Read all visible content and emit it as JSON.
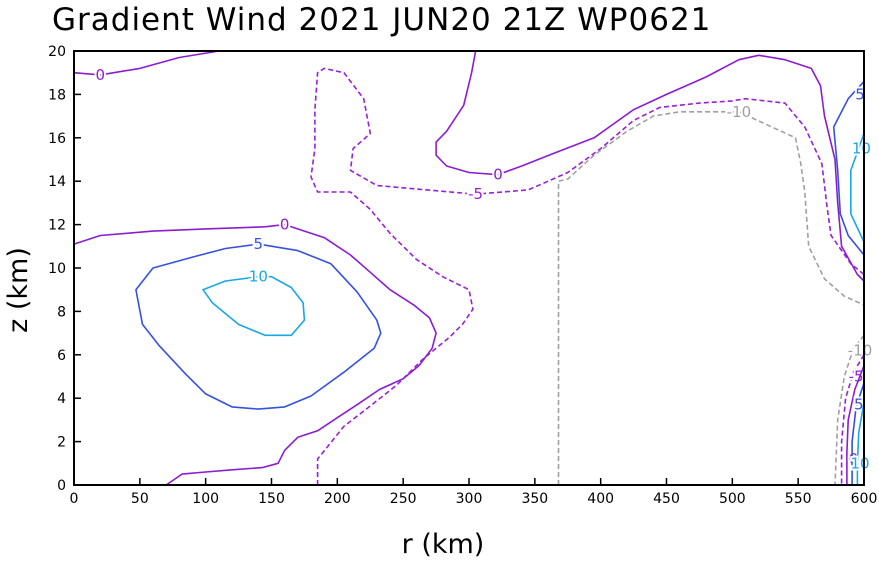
{
  "chart_data": {
    "type": "contour",
    "title": "Gradient Wind 2021 JUN20 21Z   WP0621",
    "xlabel": "r (km)",
    "ylabel": "z (km)",
    "xlim": [
      0,
      600
    ],
    "ylim": [
      0,
      20
    ],
    "xticks": [
      0,
      50,
      100,
      150,
      200,
      250,
      300,
      350,
      400,
      450,
      500,
      550,
      600
    ],
    "yticks": [
      0,
      2,
      4,
      6,
      8,
      10,
      12,
      14,
      16,
      18,
      20
    ],
    "grid": false,
    "levels": [
      {
        "value": -10,
        "label": "-10",
        "color": "#a0a0a0",
        "dashed": true
      },
      {
        "value": -5,
        "label": "-5",
        "color": "#9b1fd6",
        "dashed": true
      },
      {
        "value": 0,
        "label": "0",
        "color": "#8c1ccf",
        "dashed": false
      },
      {
        "value": 5,
        "label": "5",
        "color": "#3551e0",
        "dashed": false
      },
      {
        "value": 10,
        "label": "10",
        "color": "#19a7e8",
        "dashed": false
      }
    ],
    "contours": [
      {
        "level": 0,
        "label_at": [
          20,
          18.9
        ],
        "points": [
          [
            0,
            19.0
          ],
          [
            20,
            18.9
          ],
          [
            50,
            19.2
          ],
          [
            80,
            19.7
          ],
          [
            110,
            20.0
          ]
        ]
      },
      {
        "level": 0,
        "label_at": [
          322,
          14.3
        ],
        "points": [
          [
            305,
            20.0
          ],
          [
            302,
            19.0
          ],
          [
            296,
            17.5
          ],
          [
            283,
            16.3
          ],
          [
            275,
            15.8
          ],
          [
            275,
            15.2
          ],
          [
            283,
            14.7
          ],
          [
            300,
            14.4
          ],
          [
            322,
            14.3
          ],
          [
            340,
            14.7
          ],
          [
            365,
            15.3
          ],
          [
            395,
            16.0
          ],
          [
            425,
            17.3
          ],
          [
            450,
            18.0
          ],
          [
            480,
            18.8
          ],
          [
            505,
            19.6
          ],
          [
            520,
            19.8
          ],
          [
            540,
            19.6
          ],
          [
            560,
            19.2
          ],
          [
            567,
            18.4
          ],
          [
            570,
            17.0
          ],
          [
            578,
            15.0
          ],
          [
            580,
            13.0
          ],
          [
            583,
            11.0
          ],
          [
            595,
            9.7
          ],
          [
            600,
            9.4
          ]
        ]
      },
      {
        "level": 0,
        "label_at": [
          160,
          12.0
        ],
        "points": [
          [
            0,
            11.1
          ],
          [
            20,
            11.5
          ],
          [
            60,
            11.7
          ],
          [
            100,
            11.8
          ],
          [
            145,
            11.9
          ],
          [
            160,
            12.0
          ],
          [
            190,
            11.4
          ],
          [
            210,
            10.6
          ],
          [
            225,
            9.8
          ],
          [
            240,
            9.0
          ],
          [
            258,
            8.3
          ],
          [
            270,
            7.7
          ],
          [
            275,
            7.0
          ],
          [
            272,
            6.3
          ],
          [
            262,
            5.5
          ],
          [
            250,
            4.9
          ],
          [
            232,
            4.4
          ],
          [
            215,
            3.7
          ],
          [
            200,
            3.1
          ],
          [
            185,
            2.5
          ],
          [
            170,
            2.2
          ],
          [
            160,
            1.6
          ],
          [
            155,
            1.0
          ],
          [
            143,
            0.8
          ],
          [
            120,
            0.7
          ],
          [
            100,
            0.6
          ],
          [
            82,
            0.5
          ],
          [
            70,
            0.0
          ]
        ]
      },
      {
        "level": 5,
        "label_at": [
          140,
          11.1
        ],
        "points": [
          [
            140,
            11.1
          ],
          [
            115,
            10.9
          ],
          [
            90,
            10.5
          ],
          [
            60,
            10.0
          ],
          [
            47,
            9.0
          ],
          [
            52,
            7.4
          ],
          [
            65,
            6.4
          ],
          [
            85,
            5.1
          ],
          [
            100,
            4.2
          ],
          [
            120,
            3.6
          ],
          [
            140,
            3.5
          ],
          [
            160,
            3.6
          ],
          [
            180,
            4.1
          ],
          [
            205,
            5.2
          ],
          [
            228,
            6.3
          ],
          [
            233,
            7.0
          ],
          [
            230,
            7.6
          ],
          [
            215,
            8.9
          ],
          [
            195,
            10.2
          ],
          [
            170,
            10.8
          ],
          [
            140,
            11.1
          ]
        ]
      },
      {
        "level": 10,
        "label_at": [
          140,
          9.6
        ],
        "points": [
          [
            140,
            9.6
          ],
          [
            115,
            9.4
          ],
          [
            98,
            9.0
          ],
          [
            105,
            8.4
          ],
          [
            125,
            7.4
          ],
          [
            145,
            6.9
          ],
          [
            165,
            6.9
          ],
          [
            175,
            7.6
          ],
          [
            174,
            8.4
          ],
          [
            165,
            9.1
          ],
          [
            150,
            9.6
          ],
          [
            140,
            9.6
          ]
        ]
      },
      {
        "level": -5,
        "label_at": [
          305,
          13.4
        ],
        "points": [
          [
            185,
            0.0
          ],
          [
            185,
            1.2
          ],
          [
            205,
            2.7
          ],
          [
            222,
            3.5
          ],
          [
            245,
            4.6
          ],
          [
            265,
            5.8
          ],
          [
            285,
            6.8
          ],
          [
            295,
            7.4
          ],
          [
            303,
            8.1
          ],
          [
            300,
            9.0
          ],
          [
            280,
            9.6
          ],
          [
            260,
            10.4
          ],
          [
            240,
            11.6
          ],
          [
            225,
            12.7
          ],
          [
            210,
            13.5
          ],
          [
            185,
            13.5
          ],
          [
            180,
            14.2
          ],
          [
            183,
            15.5
          ],
          [
            183,
            17.3
          ],
          [
            185,
            19.0
          ],
          [
            190,
            19.2
          ],
          [
            205,
            19.0
          ],
          [
            220,
            17.8
          ],
          [
            225,
            16.2
          ],
          [
            212,
            15.5
          ],
          [
            210,
            14.5
          ],
          [
            230,
            13.8
          ],
          [
            305,
            13.4
          ],
          [
            345,
            13.6
          ],
          [
            375,
            14.4
          ],
          [
            400,
            15.5
          ],
          [
            425,
            16.8
          ],
          [
            445,
            17.4
          ],
          [
            475,
            17.6
          ],
          [
            500,
            17.7
          ],
          [
            510,
            17.8
          ],
          [
            540,
            17.6
          ],
          [
            555,
            16.5
          ],
          [
            568,
            14.8
          ],
          [
            572,
            12.8
          ],
          [
            575,
            11.5
          ],
          [
            590,
            10.2
          ],
          [
            600,
            9.7
          ]
        ]
      },
      {
        "level": -10,
        "label_at": [
          505,
          17.2
        ],
        "points": [
          [
            368,
            0.0
          ],
          [
            368,
            14.0
          ],
          [
            375,
            14.1
          ],
          [
            395,
            15.2
          ],
          [
            420,
            16.3
          ],
          [
            440,
            17.0
          ],
          [
            460,
            17.2
          ],
          [
            480,
            17.2
          ],
          [
            505,
            17.2
          ],
          [
            530,
            16.5
          ],
          [
            548,
            16.0
          ],
          [
            552,
            14.8
          ],
          [
            555,
            13.5
          ],
          [
            558,
            11.0
          ],
          [
            570,
            9.5
          ],
          [
            585,
            8.7
          ],
          [
            600,
            8.3
          ]
        ]
      },
      {
        "level": 5,
        "label_at": [
          597,
          18.0
        ],
        "points": [
          [
            600,
            18.6
          ],
          [
            588,
            17.8
          ],
          [
            577,
            16.5
          ],
          [
            580,
            14.5
          ],
          [
            582,
            12.5
          ],
          [
            588,
            11.5
          ],
          [
            600,
            10.6
          ]
        ]
      },
      {
        "level": 10,
        "label_at": [
          598,
          15.5
        ],
        "points": [
          [
            600,
            16.2
          ],
          [
            590,
            14.5
          ],
          [
            590,
            12.5
          ],
          [
            600,
            11.2
          ]
        ]
      },
      {
        "level": -10,
        "label_at": [
          597,
          6.2
        ],
        "points": [
          [
            600,
            6.9
          ],
          [
            592,
            6.3
          ],
          [
            585,
            5.0
          ],
          [
            580,
            3.0
          ],
          [
            578,
            0.0
          ]
        ]
      },
      {
        "level": -5,
        "label_at": [
          594,
          5.0
        ],
        "points": [
          [
            600,
            6.0
          ],
          [
            592,
            5.2
          ],
          [
            586,
            4.0
          ],
          [
            583,
            2.0
          ],
          [
            583,
            0.0
          ]
        ]
      },
      {
        "level": 0,
        "label_at": [
          592,
          1.2
        ],
        "points": [
          [
            600,
            5.5
          ],
          [
            593,
            4.4
          ],
          [
            588,
            3.0
          ],
          [
            587,
            1.5
          ],
          [
            587,
            0.0
          ]
        ]
      },
      {
        "level": 5,
        "label_at": [
          596,
          3.7
        ],
        "points": [
          [
            600,
            4.7
          ],
          [
            594,
            3.6
          ],
          [
            591,
            2.0
          ],
          [
            591,
            0.0
          ]
        ]
      },
      {
        "level": 10,
        "label_at": [
          597,
          1.0
        ],
        "points": [
          [
            600,
            3.8
          ],
          [
            596,
            2.4
          ],
          [
            595,
            1.0
          ],
          [
            595,
            0.0
          ]
        ]
      }
    ]
  }
}
